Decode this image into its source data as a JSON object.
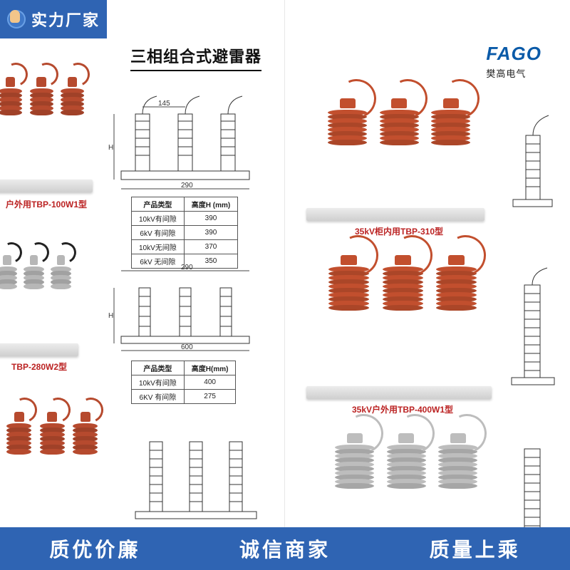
{
  "badge_tl": "实力厂家",
  "left": {
    "title": "三相组合式避雷器",
    "products": [
      {
        "caption": "户外用TBP-100W1型",
        "sheds": 6,
        "color": "#b64a2e",
        "lead": "#b64a2e"
      },
      {
        "caption": "TBP-280W2型",
        "sheds": 5,
        "color": "#b7b7b7",
        "lead": "#222"
      },
      {
        "caption": "",
        "sheds": 7,
        "color": "#b64a2e",
        "lead": "#b64a2e"
      }
    ],
    "tables": [
      {
        "headers": [
          "产品类型",
          "高度H (mm)"
        ],
        "rows": [
          [
            "10kV有间隙",
            "390"
          ],
          [
            "6kV 有间隙",
            "390"
          ],
          [
            "10kV无间隙",
            "370"
          ],
          [
            "6kV 无间隙",
            "350"
          ]
        ]
      },
      {
        "headers": [
          "产品类型",
          "高度H(mm)"
        ],
        "rows": [
          [
            "10kV有间隙",
            "400"
          ],
          [
            "6KV 有间隙",
            "275"
          ]
        ]
      }
    ],
    "drawing_dims": {
      "d1": {
        "w": "290",
        "between": "145",
        "h": "H"
      },
      "d2": {
        "w": "290",
        "h": "H",
        "base": "600"
      }
    }
  },
  "right": {
    "logo_brand": "FAGO",
    "logo_sub": "樊高电气",
    "products": [
      {
        "caption": "35kV柜内用TBP-310型",
        "sheds": 8,
        "color": "#c24f2e",
        "lead": "#c24f2e"
      },
      {
        "caption": "35kV户外用TBP-400W1型",
        "sheds": 10,
        "color": "#c24f2e",
        "lead": "#c24f2e"
      },
      {
        "caption": "",
        "sheds": 10,
        "color": "#bdbdbd",
        "lead": "#bdbdbd"
      }
    ]
  },
  "banner": {
    "items": [
      "质优价廉",
      "诚信商家",
      "质量上乘"
    ]
  },
  "colors": {
    "brand_blue": "#2f64b3",
    "logo_blue": "#0a5aa8",
    "arrester_orange": "#c24f2e",
    "arrester_grey": "#b7b7b7",
    "base_metal": "#d9d9d9"
  }
}
